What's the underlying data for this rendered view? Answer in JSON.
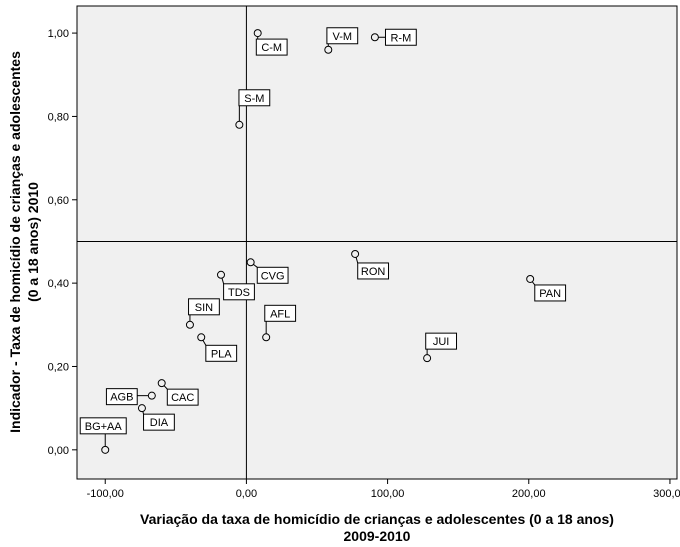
{
  "chart_data": {
    "type": "scatter",
    "title": "",
    "xlabel": [
      "Variação da taxa de homicídio de crianças e adolescentes (0 a 18 anos)",
      "2009-2010"
    ],
    "ylabel": [
      "Indicador - Taxa de homicídio de crianças e adolescentes",
      "(0 a 18 anos) 2010"
    ],
    "xlim": [
      -120,
      305
    ],
    "ylim": [
      -0.07,
      1.065
    ],
    "xticks": [
      -100,
      0,
      100,
      200,
      300
    ],
    "xtick_labels": [
      "-100,00",
      "0,00",
      "100,00",
      "200,00",
      "300,00"
    ],
    "yticks": [
      0.0,
      0.2,
      0.4,
      0.6,
      0.8,
      1.0
    ],
    "ytick_labels": [
      "0,00",
      "0,20",
      "0,40",
      "0,60",
      "0,80",
      "1,00"
    ],
    "reference_lines": {
      "x": 0,
      "y": 0.5
    },
    "plot_background": "#f0f0f0",
    "grid": false,
    "points": [
      {
        "label": "C-M",
        "x": 8,
        "y": 1.0
      },
      {
        "label": "V-M",
        "x": 58,
        "y": 0.96
      },
      {
        "label": "R-M",
        "x": 91,
        "y": 0.99
      },
      {
        "label": "S-M",
        "x": -5,
        "y": 0.78
      },
      {
        "label": "RON",
        "x": 77,
        "y": 0.47
      },
      {
        "label": "PAN",
        "x": 201,
        "y": 0.41
      },
      {
        "label": "TDS",
        "x": -18,
        "y": 0.42
      },
      {
        "label": "CVG",
        "x": 3,
        "y": 0.45
      },
      {
        "label": "SIN",
        "x": -40,
        "y": 0.3
      },
      {
        "label": "AFL",
        "x": 14,
        "y": 0.27
      },
      {
        "label": "PLA",
        "x": -32,
        "y": 0.27
      },
      {
        "label": "JUI",
        "x": 128,
        "y": 0.22
      },
      {
        "label": "AGB",
        "x": -67,
        "y": 0.13
      },
      {
        "label": "CAC",
        "x": -60,
        "y": 0.16
      },
      {
        "label": "DIA",
        "x": -74,
        "y": 0.1
      },
      {
        "label": "BG+AA",
        "x": -100,
        "y": 0.0
      }
    ]
  }
}
